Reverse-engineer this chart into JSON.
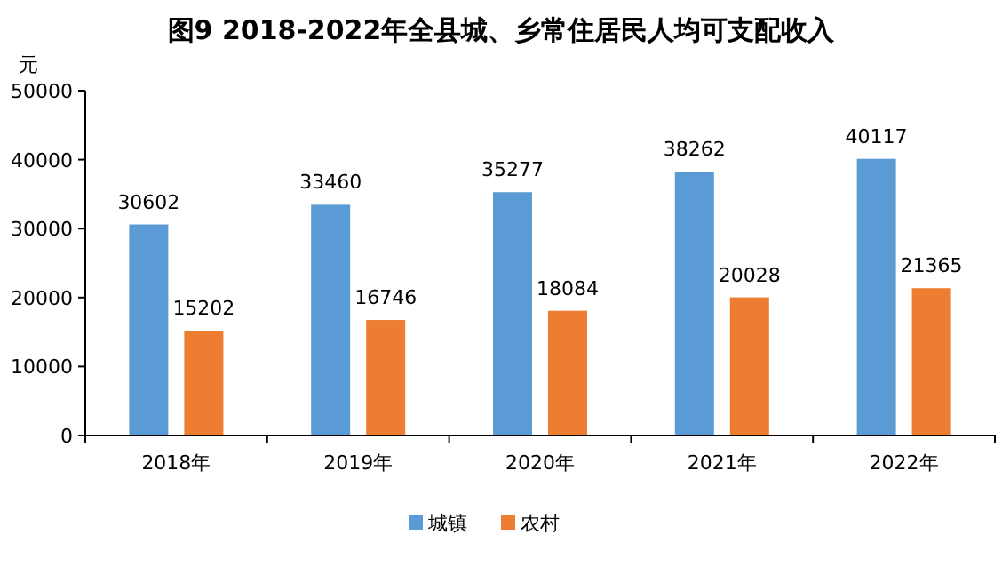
{
  "chart_data": {
    "type": "bar",
    "title": "图9 2018-2022年全县城、乡常住居民人均可支配收入",
    "ylabel": "元",
    "categories": [
      "2018年",
      "2019年",
      "2020年",
      "2021年",
      "2022年"
    ],
    "series": [
      {
        "name": "城镇",
        "color": "#5b9bd5",
        "values": [
          30602,
          33460,
          35277,
          38262,
          40117
        ]
      },
      {
        "name": "农村",
        "color": "#ed7d31",
        "values": [
          15202,
          16746,
          18084,
          20028,
          21365
        ]
      }
    ],
    "ylim": [
      0,
      50000
    ],
    "yticks": [
      0,
      10000,
      20000,
      30000,
      40000,
      50000
    ],
    "legend": "bottom",
    "data_labels": true
  }
}
